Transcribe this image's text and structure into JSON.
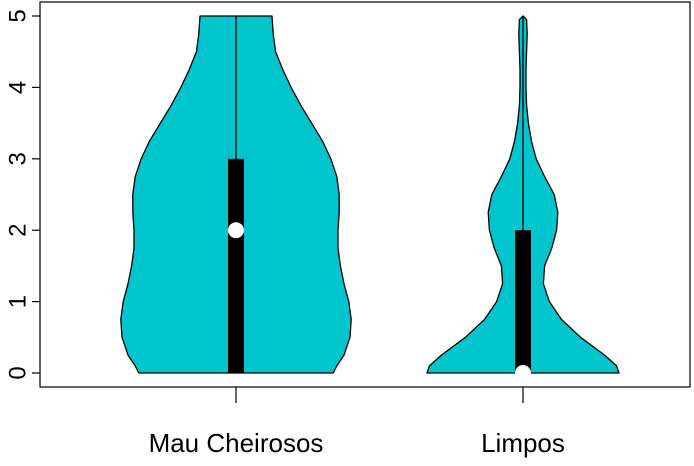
{
  "chart_data": {
    "type": "violin",
    "title": "",
    "xlabel": "",
    "ylabel": "",
    "ylim": [
      0,
      5
    ],
    "yticks": [
      "0",
      "1",
      "2",
      "3",
      "4",
      "5"
    ],
    "categories": [
      "Mau Cheirosos",
      "Limpos"
    ],
    "fill_color": "#00C5CD",
    "median_color": "#FFFFFF",
    "box_color": "#000000",
    "series": [
      {
        "category": "Mau Cheirosos",
        "min": 0,
        "q1": 0,
        "median": 2,
        "q3": 3,
        "max": 5,
        "density": [
          [
            0.0,
            0.81
          ],
          [
            0.1,
            0.84
          ],
          [
            0.25,
            0.9
          ],
          [
            0.5,
            0.95
          ],
          [
            0.75,
            0.96
          ],
          [
            1.0,
            0.94
          ],
          [
            1.25,
            0.9
          ],
          [
            1.5,
            0.87
          ],
          [
            1.75,
            0.85
          ],
          [
            2.0,
            0.85
          ],
          [
            2.25,
            0.86
          ],
          [
            2.5,
            0.86
          ],
          [
            2.75,
            0.84
          ],
          [
            3.0,
            0.79
          ],
          [
            3.25,
            0.72
          ],
          [
            3.5,
            0.63
          ],
          [
            3.75,
            0.54
          ],
          [
            4.0,
            0.46
          ],
          [
            4.25,
            0.39
          ],
          [
            4.5,
            0.33
          ],
          [
            4.75,
            0.31
          ],
          [
            5.0,
            0.3
          ]
        ]
      },
      {
        "category": "Limpos",
        "min": 0,
        "q1": 0,
        "median": 0,
        "q3": 2,
        "max": 5,
        "density": [
          [
            0.0,
            0.8
          ],
          [
            0.1,
            0.78
          ],
          [
            0.25,
            0.68
          ],
          [
            0.5,
            0.48
          ],
          [
            0.75,
            0.32
          ],
          [
            1.0,
            0.22
          ],
          [
            1.25,
            0.17
          ],
          [
            1.5,
            0.18
          ],
          [
            1.75,
            0.24
          ],
          [
            2.0,
            0.28
          ],
          [
            2.25,
            0.29
          ],
          [
            2.5,
            0.26
          ],
          [
            2.75,
            0.18
          ],
          [
            3.0,
            0.11
          ],
          [
            3.25,
            0.07
          ],
          [
            3.5,
            0.045
          ],
          [
            3.75,
            0.03
          ],
          [
            4.0,
            0.025
          ],
          [
            4.25,
            0.025
          ],
          [
            4.5,
            0.03
          ],
          [
            4.75,
            0.035
          ],
          [
            4.95,
            0.03
          ],
          [
            5.0,
            0.0
          ]
        ]
      }
    ]
  }
}
